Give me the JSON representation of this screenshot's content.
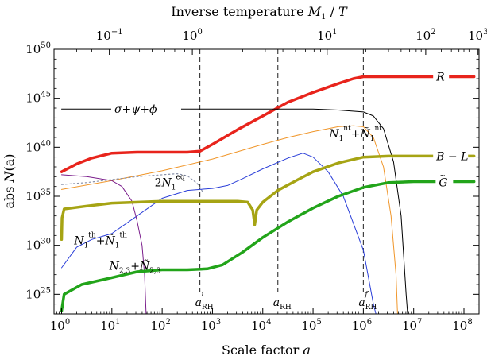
{
  "chart_data": {
    "type": "line",
    "title": "Inverse temperature M1 / T",
    "title_parts": {
      "main": "Inverse temperature ",
      "sym": "M",
      "sub": "1",
      "tail": " / ",
      "sym2": "T"
    },
    "xlabel": "Scale factor a",
    "xlabel_parts": {
      "main": "Scale factor ",
      "sym": "a"
    },
    "ylabel": "abs N(a)",
    "ylabel_parts": {
      "main": "abs ",
      "sym": "N",
      "tail": "(a)"
    },
    "x_scale": "log",
    "y_scale": "log",
    "xlim_log10": [
      -0.15,
      8.3
    ],
    "ylim_log10": [
      23.0,
      50.0
    ],
    "x_ticks": [
      {
        "exp": 0,
        "base": "10",
        "sup": "0"
      },
      {
        "exp": 1,
        "base": "10",
        "sup": "1"
      },
      {
        "exp": 2,
        "base": "10",
        "sup": "2"
      },
      {
        "exp": 3,
        "base": "10",
        "sup": "3"
      },
      {
        "exp": 4,
        "base": "10",
        "sup": "4"
      },
      {
        "exp": 5,
        "base": "10",
        "sup": "5"
      },
      {
        "exp": 6,
        "base": "10",
        "sup": "6"
      },
      {
        "exp": 7,
        "base": "10",
        "sup": "7"
      },
      {
        "exp": 8,
        "base": "10",
        "sup": "8"
      }
    ],
    "y_ticks": [
      {
        "exp": 25,
        "base": "10",
        "sup": "25"
      },
      {
        "exp": 30,
        "base": "10",
        "sup": "30"
      },
      {
        "exp": 35,
        "base": "10",
        "sup": "35"
      },
      {
        "exp": 40,
        "base": "10",
        "sup": "40"
      },
      {
        "exp": 45,
        "base": "10",
        "sup": "45"
      },
      {
        "exp": 50,
        "base": "10",
        "sup": "50"
      }
    ],
    "top_ticks": [
      {
        "pos_log10a": 0.95,
        "base": "10",
        "sup": "−1"
      },
      {
        "pos_log10a": 2.6,
        "base": "10",
        "sup": "0"
      },
      {
        "pos_log10a": 5.28,
        "base": "10",
        "sup": "1"
      },
      {
        "pos_log10a": 7.24,
        "base": "10",
        "sup": "2"
      },
      {
        "pos_log10a": 8.28,
        "base": "10",
        "sup": "3"
      }
    ],
    "vertical_markers": [
      {
        "name": "a-RH-initial",
        "x_log10": 2.75,
        "sym": "a",
        "sub": "RH",
        "sup": "i"
      },
      {
        "name": "a-RH",
        "x_log10": 4.3,
        "sym": "a",
        "sub": "RH",
        "sup": ""
      },
      {
        "name": "a-RH-final",
        "x_log10": 6.0,
        "sym": "a",
        "sub": "RH",
        "sup": "f"
      }
    ],
    "series": [
      {
        "name": "R",
        "color": "#e8241c",
        "width": 3.5,
        "points": [
          [
            0,
            37.5
          ],
          [
            0.3,
            38.3
          ],
          [
            0.6,
            38.9
          ],
          [
            1,
            39.4
          ],
          [
            1.5,
            39.5
          ],
          [
            2,
            39.5
          ],
          [
            2.5,
            39.5
          ],
          [
            2.75,
            39.6
          ],
          [
            3,
            40.3
          ],
          [
            3.5,
            41.8
          ],
          [
            4,
            43.2
          ],
          [
            4.5,
            44.6
          ],
          [
            5,
            45.6
          ],
          [
            5.5,
            46.5
          ],
          [
            5.8,
            47.0
          ],
          [
            6,
            47.2
          ],
          [
            6.5,
            47.2
          ],
          [
            7,
            47.2
          ],
          [
            8.2,
            47.2
          ]
        ]
      },
      {
        "name": "sigma+psi+phi",
        "color": "#000000",
        "width": 1,
        "points": [
          [
            0,
            43.9
          ],
          [
            3,
            43.9
          ],
          [
            5,
            43.9
          ],
          [
            5.5,
            43.8
          ],
          [
            6,
            43.6
          ],
          [
            6.2,
            43.2
          ],
          [
            6.4,
            41.9
          ],
          [
            6.6,
            38.5
          ],
          [
            6.75,
            33
          ],
          [
            6.85,
            25
          ],
          [
            6.88,
            23
          ]
        ]
      },
      {
        "name": "N1nt",
        "color": "#f0962a",
        "width": 1,
        "points": [
          [
            0,
            35.7
          ],
          [
            1,
            36.6
          ],
          [
            2,
            37.6
          ],
          [
            3,
            38.8
          ],
          [
            4,
            40.3
          ],
          [
            4.5,
            41.0
          ],
          [
            5,
            41.6
          ],
          [
            5.5,
            42.1
          ],
          [
            5.8,
            42.2
          ],
          [
            6.0,
            42.1
          ],
          [
            6.2,
            41.0
          ],
          [
            6.4,
            38
          ],
          [
            6.55,
            33
          ],
          [
            6.65,
            27
          ],
          [
            6.68,
            23
          ]
        ]
      },
      {
        "name": "N1eq-dotted",
        "color": "#8890a8",
        "width": 1.2,
        "dash": "2,3",
        "points": [
          [
            0,
            36.2
          ],
          [
            0.5,
            36.4
          ],
          [
            1,
            36.7
          ],
          [
            1.5,
            37.0
          ],
          [
            2,
            37.2
          ],
          [
            2.3,
            37.3
          ],
          [
            2.5,
            37.1
          ],
          [
            2.7,
            36.3
          ],
          [
            2.8,
            35.5
          ]
        ]
      },
      {
        "name": "N1th",
        "color": "#2a3ed8",
        "width": 1,
        "points": [
          [
            0,
            27.7
          ],
          [
            0.3,
            29.8
          ],
          [
            0.6,
            30.6
          ],
          [
            1,
            31.2
          ],
          [
            1.5,
            33.0
          ],
          [
            2,
            34.8
          ],
          [
            2.5,
            35.6
          ],
          [
            3,
            35.8
          ],
          [
            3.3,
            36.1
          ],
          [
            3.6,
            36.8
          ],
          [
            4,
            37.8
          ],
          [
            4.5,
            38.9
          ],
          [
            4.8,
            39.4
          ],
          [
            5.0,
            39.0
          ],
          [
            5.3,
            37.5
          ],
          [
            5.6,
            35
          ],
          [
            6,
            29.5
          ],
          [
            6.2,
            24
          ],
          [
            6.25,
            23
          ]
        ]
      },
      {
        "name": "N23",
        "color": "#7b1e8c",
        "width": 1,
        "points": [
          [
            0,
            37.2
          ],
          [
            0.5,
            37.0
          ],
          [
            1,
            36.6
          ],
          [
            1.2,
            36.0
          ],
          [
            1.4,
            34.5
          ],
          [
            1.5,
            32.5
          ],
          [
            1.6,
            30
          ],
          [
            1.65,
            27
          ],
          [
            1.68,
            23
          ]
        ]
      },
      {
        "name": "B-L",
        "color": "#a6a414",
        "width": 3.5,
        "points": [
          [
            0,
            30.6
          ],
          [
            0.01,
            32.8
          ],
          [
            0.05,
            33.7
          ],
          [
            0.5,
            34.0
          ],
          [
            1,
            34.3
          ],
          [
            2,
            34.5
          ],
          [
            3,
            34.5
          ],
          [
            3.5,
            34.5
          ],
          [
            3.7,
            34.4
          ],
          [
            3.8,
            33.6
          ],
          [
            3.84,
            32.1
          ],
          [
            3.88,
            33.6
          ],
          [
            4,
            34.4
          ],
          [
            4.3,
            35.6
          ],
          [
            4.7,
            36.7
          ],
          [
            5.0,
            37.5
          ],
          [
            5.5,
            38.4
          ],
          [
            6,
            39.0
          ],
          [
            6.5,
            39.1
          ],
          [
            8.2,
            39.1
          ]
        ]
      },
      {
        "name": "Gtilde",
        "color": "#22a41a",
        "width": 3.5,
        "points": [
          [
            0,
            23.3
          ],
          [
            0.05,
            25.0
          ],
          [
            0.4,
            26.0
          ],
          [
            1,
            26.7
          ],
          [
            1.5,
            27.3
          ],
          [
            2,
            27.5
          ],
          [
            2.5,
            27.5
          ],
          [
            2.9,
            27.6
          ],
          [
            3.2,
            28.0
          ],
          [
            3.6,
            29.3
          ],
          [
            4,
            30.8
          ],
          [
            4.5,
            32.4
          ],
          [
            5,
            33.8
          ],
          [
            5.5,
            35.0
          ],
          [
            6,
            35.9
          ],
          [
            6.5,
            36.4
          ],
          [
            7,
            36.5
          ],
          [
            8.2,
            36.5
          ]
        ]
      }
    ],
    "annotations": [
      {
        "name": "label-R",
        "x": 7.45,
        "y": 47.2,
        "sym": "R"
      },
      {
        "name": "label-sigma",
        "text": "σ+ψ+ϕ",
        "x": 1.05,
        "y": 43.9
      },
      {
        "name": "label-N1nt",
        "x": 5.32,
        "y": 41.4
      },
      {
        "name": "label-2N1eq",
        "x": 1.85,
        "y": 36.4
      },
      {
        "name": "label-BL",
        "text": "B − L",
        "x": 7.45,
        "y": 39.1
      },
      {
        "name": "label-Gtilde",
        "x": 7.5,
        "y": 36.5,
        "sym": "G"
      },
      {
        "name": "label-N1th",
        "x": 0.25,
        "y": 30.5
      },
      {
        "name": "label-N23",
        "x": 0.95,
        "y": 27.9
      }
    ]
  }
}
